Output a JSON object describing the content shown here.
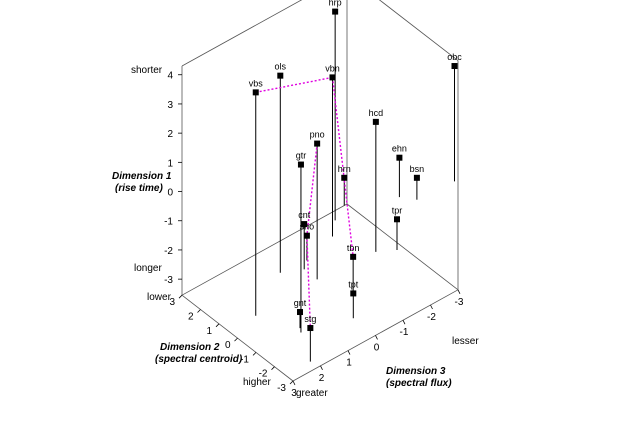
{
  "chart_data": {
    "type": "scatter",
    "style": "3d-stem",
    "axes": {
      "dim1": {
        "title": [
          "Dimension 1",
          "(rise time)"
        ],
        "ticks": [
          "4",
          "3",
          "2",
          "1",
          "0",
          "-1",
          "-2",
          "-3"
        ],
        "tick_values": [
          4,
          3,
          2,
          1,
          0,
          -1,
          -2,
          -3
        ],
        "end_labels": {
          "top": "shorter",
          "bottom": "longer"
        }
      },
      "dim2": {
        "title": [
          "Dimension 2",
          "(spectral centroid)"
        ],
        "ticks": [
          "3",
          "2",
          "1",
          "0",
          "-1",
          "-2",
          "-3"
        ],
        "tick_values": [
          3,
          2,
          1,
          0,
          -1,
          -2,
          -3
        ],
        "end_labels": {
          "low": "lower",
          "high": "higher"
        }
      },
      "dim3": {
        "title": [
          "Dimension 3",
          "(spectral flux)"
        ],
        "ticks": [
          "3",
          "2",
          "1",
          "0",
          "-1",
          "-2",
          "-3"
        ],
        "tick_values": [
          3,
          2,
          1,
          0,
          -1,
          -2,
          -3
        ],
        "end_labels": {
          "greater": "greater",
          "lesser": "lesser"
        }
      }
    },
    "points": [
      {
        "label": "vbs",
        "dim1": 4.1,
        "dim2": 0.5,
        "dim3": 2.0
      },
      {
        "label": "hrp",
        "dim1": 3.6,
        "dim2": 2.6,
        "dim3": -2.3
      },
      {
        "label": "ols",
        "dim1": 3.2,
        "dim2": 1.7,
        "dim3": 0.3
      },
      {
        "label": "gtr",
        "dim1": 2.2,
        "dim2": -1.2,
        "dim3": 1.5
      },
      {
        "label": "vbn",
        "dim1": 1.9,
        "dim2": 2.0,
        "dim3": -1.8
      },
      {
        "label": "pno",
        "dim1": 1.1,
        "dim2": 0.6,
        "dim3": -0.3
      },
      {
        "label": "hcd",
        "dim1": 0.9,
        "dim2": 0.4,
        "dim3": -2.3
      },
      {
        "label": "obc",
        "dim1": 0.4,
        "dim2": 1.5,
        "dim3": -5.9
      },
      {
        "label": "gnt",
        "dim1": -3.0,
        "dim2": -1.0,
        "dim3": 1.4
      },
      {
        "label": "cnt",
        "dim1": -2.0,
        "dim2": 1.3,
        "dim3": -0.3
      },
      {
        "label": "tbn",
        "dim1": -2.2,
        "dim2": -0.9,
        "dim3": -0.6
      },
      {
        "label": "tpr",
        "dim1": -2.5,
        "dim2": 0.0,
        "dim3": -2.8
      },
      {
        "label": "sno",
        "dim1": -2.7,
        "dim2": 1.6,
        "dim3": -0.6
      },
      {
        "label": "hrn",
        "dim1": -2.6,
        "dim2": 3.0,
        "dim3": -2.9
      },
      {
        "label": "ehn",
        "dim1": -2.2,
        "dim2": 2.1,
        "dim3": -4.3
      },
      {
        "label": "bsn",
        "dim1": -2.8,
        "dim2": 1.6,
        "dim3": -4.6
      },
      {
        "label": "stg",
        "dim1": -2.4,
        "dim2": -2.6,
        "dim3": 2.1
      },
      {
        "label": "tpt",
        "dim1": -2.7,
        "dim2": -1.8,
        "dim3": 0.0
      }
    ],
    "connectors": [
      {
        "from": "vbs",
        "to": "vbn",
        "color": "#e000e0",
        "style": "dotted"
      },
      {
        "from": "vbn",
        "to": "tbn",
        "color": "#e000e0",
        "style": "dotted"
      },
      {
        "from": "pno",
        "to": "sno",
        "color": "#e000e0",
        "style": "dotted"
      },
      {
        "from": "sno",
        "to": "stg",
        "color": "#e000e0",
        "style": "dotted"
      }
    ],
    "colors": {
      "frame": "#555555",
      "stem": "#000000",
      "marker": "#000000",
      "connector": "#e000e0"
    }
  }
}
